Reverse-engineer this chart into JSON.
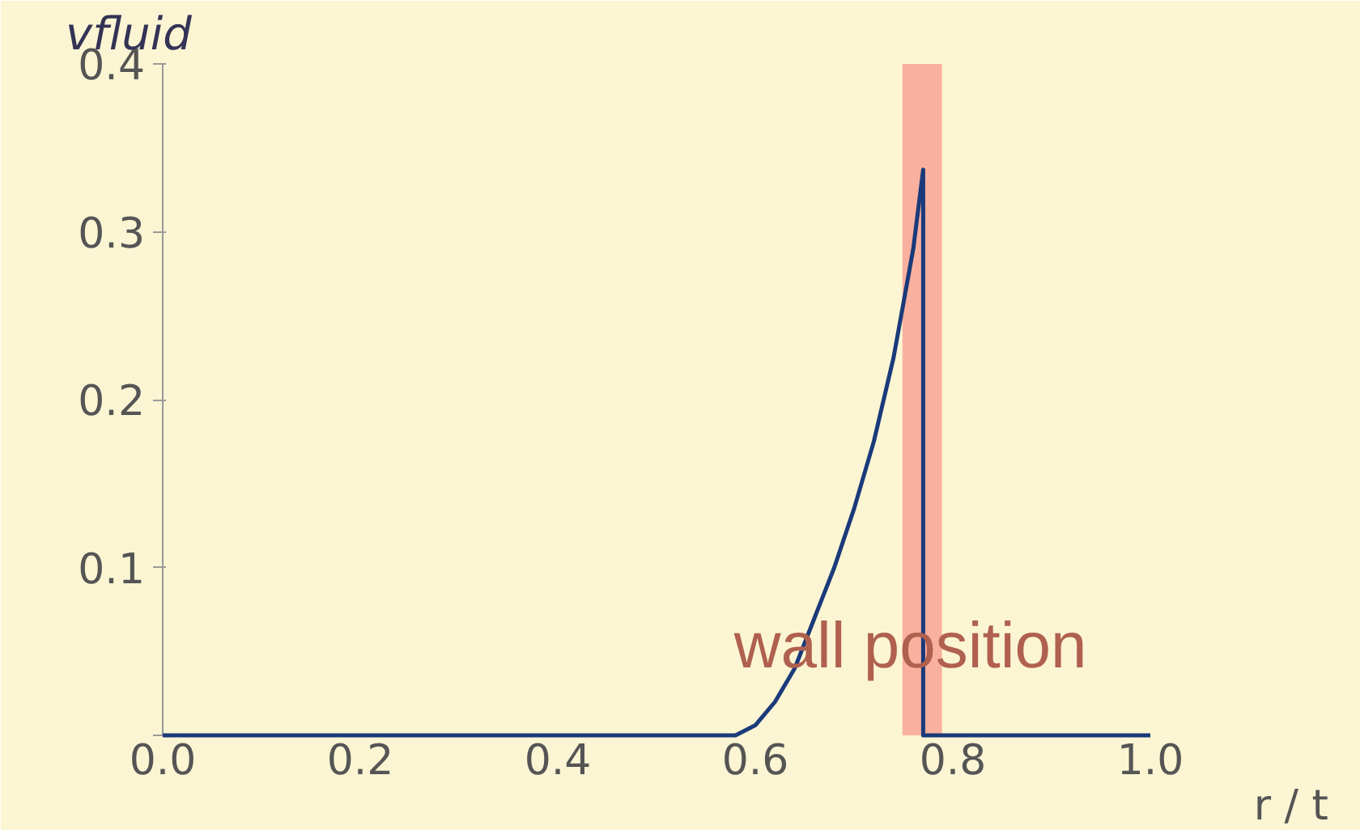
{
  "chart_data": {
    "type": "line",
    "ylabel": "vfluid",
    "xlabel": "r / t",
    "xlim": [
      0,
      1
    ],
    "ylim": [
      0,
      0.4
    ],
    "xticks": [
      {
        "value": 0,
        "label": "0.0"
      },
      {
        "value": 0.2,
        "label": "0.2"
      },
      {
        "value": 0.4,
        "label": "0.4"
      },
      {
        "value": 0.6,
        "label": "0.6"
      },
      {
        "value": 0.8,
        "label": "0.8"
      },
      {
        "value": 1,
        "label": "1.0"
      }
    ],
    "yticks": [
      {
        "value": 0,
        "label": null
      },
      0.1,
      0.2,
      0.3,
      0.4
    ],
    "series": [
      {
        "color": "#1a3a7a",
        "x": [
          0,
          0.58,
          0.6,
          0.62,
          0.64,
          0.66,
          0.68,
          0.7,
          0.72,
          0.74,
          0.76,
          0.77,
          0.77,
          1.0
        ],
        "values": [
          0,
          0,
          0.006,
          0.02,
          0.04,
          0.07,
          0.1,
          0.135,
          0.175,
          0.225,
          0.29,
          0.337,
          0,
          0
        ]
      }
    ],
    "bands": [
      {
        "axis": "x",
        "from": 0.749,
        "to": 0.789,
        "color": "#f8a898"
      }
    ],
    "annotations": [
      {
        "text": "wall position",
        "x": 0.757,
        "y": 0.053
      }
    ],
    "grid": false
  }
}
